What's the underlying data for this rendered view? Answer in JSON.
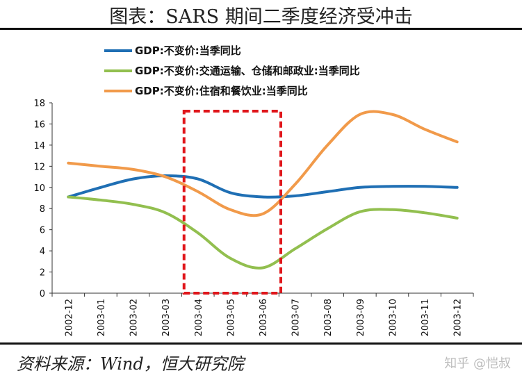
{
  "page": {
    "title": "图表：SARS 期间二季度经济受冲击",
    "source": "资料来源：Wind，恒大研究院",
    "watermark": "知乎 @恺叔"
  },
  "chart_data": {
    "type": "line",
    "x": [
      "2002-12",
      "2003-01",
      "2003-02",
      "2003-03",
      "2003-04",
      "2003-05",
      "2003-06",
      "2003-07",
      "2003-08",
      "2003-09",
      "2003-10",
      "2003-11",
      "2003-12"
    ],
    "ylim": [
      0,
      18
    ],
    "yticks": [
      0,
      2,
      4,
      6,
      8,
      10,
      12,
      14,
      16,
      18
    ],
    "legend_position": "top",
    "series": [
      {
        "name": "GDP:不变价:当季同比",
        "color": "#1f6fb4",
        "values": [
          9.1,
          10.0,
          10.8,
          11.1,
          10.8,
          9.5,
          9.1,
          9.2,
          9.6,
          10.0,
          10.1,
          10.1,
          10.0
        ]
      },
      {
        "name": "GDP:不变价:交通运输、仓储和邮政业:当季同比",
        "color": "#92bf4f",
        "values": [
          9.1,
          8.8,
          8.4,
          7.6,
          5.7,
          3.3,
          2.4,
          4.2,
          6.1,
          7.7,
          7.9,
          7.6,
          7.1
        ]
      },
      {
        "name": "GDP:不变价:住宿和餐饮业:当季同比",
        "color": "#f19a4a",
        "values": [
          12.3,
          12.0,
          11.7,
          11.0,
          9.6,
          7.9,
          7.5,
          10.3,
          14.0,
          16.9,
          16.9,
          15.5,
          14.3
        ]
      }
    ],
    "highlight": {
      "from": "2003-04",
      "to": "2003-06",
      "color": "#e0161b",
      "style": "dashed"
    }
  }
}
